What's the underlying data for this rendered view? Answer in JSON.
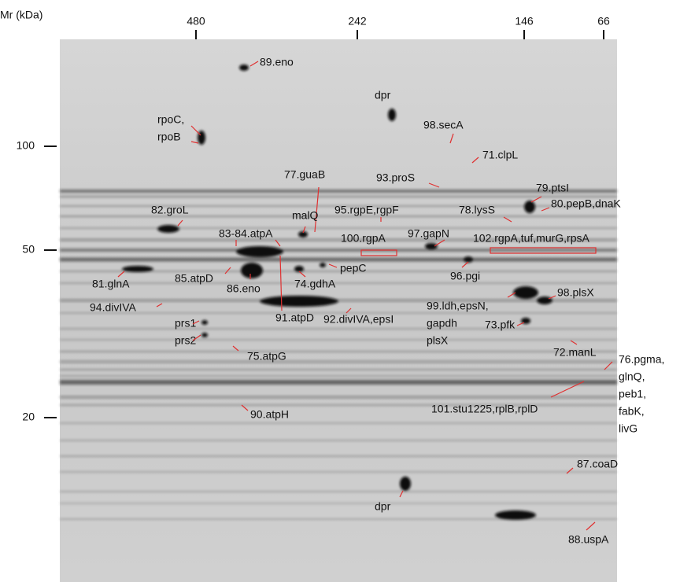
{
  "axis": {
    "y_title": "Mr (kDa)",
    "top_ticks": [
      "480",
      "242",
      "146",
      "66"
    ],
    "left_ticks": [
      "100",
      "50",
      "20"
    ]
  },
  "annotations": [
    {
      "lines": [
        "89.eno"
      ]
    },
    {
      "lines": [
        "dpr"
      ]
    },
    {
      "lines": [
        "rpoC,",
        "rpoB"
      ]
    },
    {
      "lines": [
        "98.secA"
      ]
    },
    {
      "lines": [
        "71.clpL"
      ]
    },
    {
      "lines": [
        "77.guaB"
      ]
    },
    {
      "lines": [
        "93.proS"
      ]
    },
    {
      "lines": [
        "79.ptsI"
      ]
    },
    {
      "lines": [
        "82.groL"
      ]
    },
    {
      "lines": [
        "malQ"
      ]
    },
    {
      "lines": [
        "95.rgpE,rgpF"
      ]
    },
    {
      "lines": [
        "78.lysS"
      ]
    },
    {
      "lines": [
        "80.pepB,dnaK"
      ]
    },
    {
      "lines": [
        "83-84.atpA"
      ]
    },
    {
      "lines": [
        "100.rgpA"
      ]
    },
    {
      "lines": [
        "97.gapN"
      ]
    },
    {
      "lines": [
        "102.rgpA,tuf,murG,rpsA"
      ]
    },
    {
      "lines": [
        "pepC"
      ]
    },
    {
      "lines": [
        "81.glnA"
      ]
    },
    {
      "lines": [
        "85.atpD"
      ]
    },
    {
      "lines": [
        "86.eno"
      ]
    },
    {
      "lines": [
        "74.gdhA"
      ]
    },
    {
      "lines": [
        "96.pgi"
      ]
    },
    {
      "lines": [
        "91.atpD"
      ]
    },
    {
      "lines": [
        "92.divIVA,epsI"
      ]
    },
    {
      "lines": [
        "94.divIVA"
      ]
    },
    {
      "lines": [
        "99.ldh,epsN,",
        "gapdh",
        "plsX"
      ]
    },
    {
      "lines": [
        "98.plsX"
      ]
    },
    {
      "lines": [
        "73.pfk"
      ]
    },
    {
      "lines": [
        "prs1"
      ]
    },
    {
      "lines": [
        "prs2"
      ]
    },
    {
      "lines": [
        "75.atpG"
      ]
    },
    {
      "lines": [
        "72.manL"
      ]
    },
    {
      "lines": [
        "76.pgma,",
        "glnQ,",
        "peb1,",
        "fabK,",
        "livG"
      ]
    },
    {
      "lines": [
        "101.stu1225,rplB,rplD"
      ]
    },
    {
      "lines": [
        "90.atpH"
      ]
    },
    {
      "lines": [
        "87.coaD"
      ]
    },
    {
      "lines": [
        "dpr"
      ]
    },
    {
      "lines": [
        "88.uspA"
      ]
    }
  ]
}
